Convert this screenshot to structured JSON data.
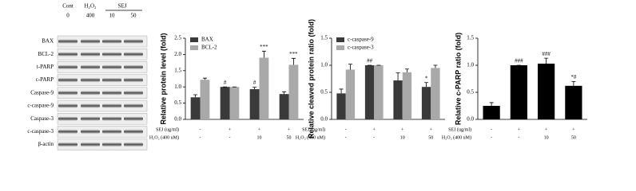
{
  "western_blot": {
    "header": {
      "groups": [
        "Cont",
        "H₂O₂",
        "SEJ"
      ],
      "doses": [
        "0",
        "400",
        "10",
        "50"
      ]
    },
    "rows": [
      "BAX",
      "BCL-2",
      "t-PARP",
      "c-PARP",
      "Caspase-9",
      "c-caspase-9",
      "Caspase-3",
      "c-caspase-3",
      "β-actin"
    ]
  },
  "chart_data": [
    {
      "type": "bar",
      "y_label": "Relative protein level  (fold)",
      "ylim": [
        0,
        2.5
      ],
      "yticks": [
        {
          "value": 0,
          "label": "0.0"
        },
        {
          "value": 0.5,
          "label": "0.5"
        },
        {
          "value": 1,
          "label": "1.0"
        },
        {
          "value": 1.5,
          "label": "1.5"
        },
        {
          "value": 2,
          "label": "2.0"
        },
        {
          "value": 2.5,
          "label": "2.5"
        }
      ],
      "legend": "top-left",
      "series": [
        {
          "name": "BAX",
          "color": "#3a3a3a",
          "values": [
            0.68,
            1.0,
            0.93,
            0.78
          ],
          "errors": [
            0.08,
            0,
            0.06,
            0.07
          ],
          "annotations": [
            null,
            "#",
            "#",
            null
          ]
        },
        {
          "name": "BCL-2",
          "color": "#a9a9a9",
          "values": [
            1.22,
            1.0,
            1.9,
            1.68
          ],
          "errors": [
            0.05,
            0,
            0.2,
            0.2
          ],
          "annotations": [
            null,
            null,
            "***",
            "***"
          ]
        }
      ],
      "conditions": [
        {
          "label": "SEJ (ug/ml)",
          "values": [
            "-",
            "+",
            "+",
            "+"
          ]
        },
        {
          "label": "H₂O₂ (400 uM)",
          "values": [
            "-",
            "-",
            "10",
            "50"
          ]
        }
      ]
    },
    {
      "type": "bar",
      "y_label": "Relative cleaved protein ratio  (fold)",
      "ylim": [
        0,
        1.5
      ],
      "yticks": [
        {
          "value": 0,
          "label": "0.0"
        },
        {
          "value": 0.5,
          "label": "0.5"
        },
        {
          "value": 1,
          "label": "1.0"
        },
        {
          "value": 1.5,
          "label": "1.5"
        }
      ],
      "legend": "top-left",
      "series": [
        {
          "name": "c-caspase-9",
          "color": "#3a3a3a",
          "values": [
            0.48,
            1.0,
            0.72,
            0.6
          ],
          "errors": [
            0.08,
            0,
            0.14,
            0.08
          ],
          "annotations": [
            null,
            "##",
            null,
            "*"
          ]
        },
        {
          "name": "c-caspase-3",
          "color": "#a9a9a9",
          "values": [
            0.92,
            1.0,
            0.87,
            0.95
          ],
          "errors": [
            0.1,
            0,
            0.06,
            0.05
          ],
          "annotations": [
            null,
            null,
            null,
            null
          ]
        }
      ],
      "conditions": [
        {
          "label": "SEJ (ug/ml)",
          "values": [
            "-",
            "+",
            "+",
            "+"
          ]
        },
        {
          "label": "H₂O₂ (400 uM)",
          "values": [
            "-",
            "-",
            "10",
            "50"
          ]
        }
      ]
    },
    {
      "type": "bar",
      "y_label": "Relative c-PARP ratio (fold)",
      "ylim": [
        0,
        1.5
      ],
      "yticks": [
        {
          "value": 0,
          "label": "0.0"
        },
        {
          "value": 0.5,
          "label": "0.5"
        },
        {
          "value": 1,
          "label": "1.0"
        },
        {
          "value": 1.5,
          "label": "1.5"
        }
      ],
      "series": [
        {
          "color": "#000000",
          "values": [
            0.25,
            1.0,
            1.03,
            0.62
          ],
          "errors": [
            0.06,
            0,
            0.1,
            0.08
          ],
          "annotations": [
            null,
            "###",
            "###",
            "*#"
          ]
        }
      ],
      "conditions": [
        {
          "label": "SEJ (ug/ml)",
          "values": [
            "-",
            "+",
            "+",
            "+"
          ]
        },
        {
          "label": "H₂O₂ (400 uM)",
          "values": [
            "-",
            "-",
            "10",
            "50"
          ]
        }
      ]
    }
  ]
}
